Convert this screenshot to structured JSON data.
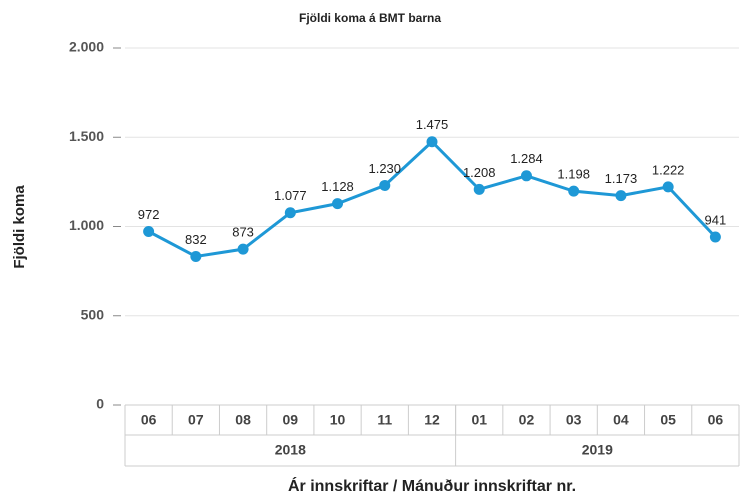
{
  "chart_data": {
    "type": "line",
    "title": "Fjöldi koma á BMT barna",
    "ylabel": "Fjöldi koma",
    "xlabel": "Ár innskriftar / Mánuður innskriftar nr.",
    "groups": [
      {
        "label": "2018",
        "categories": [
          "06",
          "07",
          "08",
          "09",
          "10",
          "11",
          "12"
        ]
      },
      {
        "label": "2019",
        "categories": [
          "01",
          "02",
          "03",
          "04",
          "05",
          "06"
        ]
      }
    ],
    "values": [
      972,
      832,
      873,
      1077,
      1128,
      1230,
      1475,
      1208,
      1284,
      1198,
      1173,
      1222,
      941
    ],
    "value_labels": [
      "972",
      "832",
      "873",
      "1.077",
      "1.128",
      "1.230",
      "1.475",
      "1.208",
      "1.284",
      "1.198",
      "1.173",
      "1.222",
      "941"
    ],
    "color": "#1e98d6",
    "ylim": [
      0,
      2000
    ],
    "yticks": [
      0,
      500,
      {
        "value": 1000,
        "label": "1.000"
      },
      {
        "value": 1500,
        "label": "1.500"
      },
      {
        "value": 2000,
        "label": "2.000"
      }
    ],
    "grid": true
  }
}
